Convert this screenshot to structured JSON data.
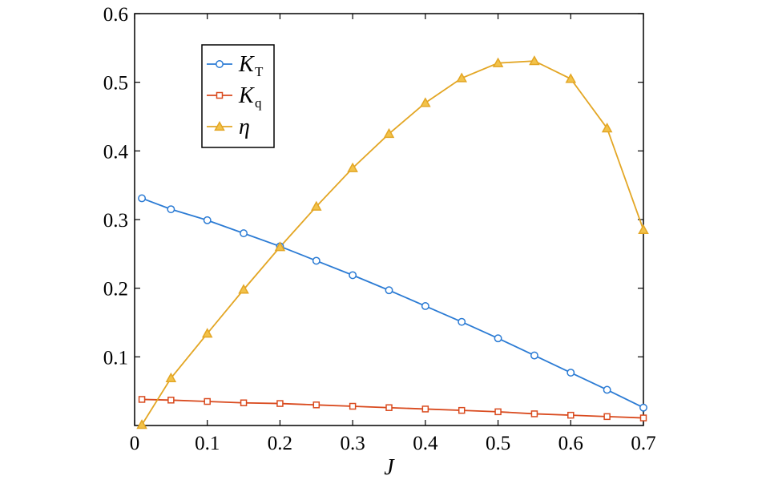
{
  "chart_data": {
    "type": "line",
    "xlabel": "J",
    "ylabel": "",
    "xlim": [
      0,
      0.7
    ],
    "ylim": [
      0,
      0.6
    ],
    "xticks": [
      0,
      0.1,
      0.2,
      0.3,
      0.4,
      0.5,
      0.6,
      0.7
    ],
    "xtick_labels": [
      "0",
      "0.1",
      "0.2",
      "0.3",
      "0.4",
      "0.5",
      "0.6",
      "0.7"
    ],
    "yticks": [
      0.1,
      0.2,
      0.3,
      0.4,
      0.5,
      0.6
    ],
    "ytick_labels": [
      "0.1",
      "0.2",
      "0.3",
      "0.4",
      "0.5",
      "0.6"
    ],
    "grid": false,
    "legend_position": "top-left",
    "series": [
      {
        "name": "K",
        "name_sub": "T",
        "color": "#2b7bd4",
        "marker": "circle",
        "x": [
          0.01,
          0.05,
          0.1,
          0.15,
          0.2,
          0.25,
          0.3,
          0.35,
          0.4,
          0.45,
          0.5,
          0.55,
          0.6,
          0.65,
          0.7
        ],
        "y": [
          0.331,
          0.315,
          0.299,
          0.28,
          0.261,
          0.24,
          0.219,
          0.197,
          0.174,
          0.151,
          0.127,
          0.102,
          0.077,
          0.052,
          0.026
        ]
      },
      {
        "name": "K",
        "name_sub": "q",
        "color": "#d94a1e",
        "marker": "square",
        "x": [
          0.01,
          0.05,
          0.1,
          0.15,
          0.2,
          0.25,
          0.3,
          0.35,
          0.4,
          0.45,
          0.5,
          0.55,
          0.6,
          0.65,
          0.7
        ],
        "y": [
          0.038,
          0.037,
          0.035,
          0.033,
          0.032,
          0.03,
          0.028,
          0.026,
          0.024,
          0.022,
          0.02,
          0.017,
          0.015,
          0.013,
          0.011
        ]
      },
      {
        "name": "η",
        "name_sub": "",
        "color": "#e3a624",
        "marker": "triangle",
        "x": [
          0.01,
          0.05,
          0.1,
          0.15,
          0.2,
          0.25,
          0.3,
          0.35,
          0.4,
          0.45,
          0.5,
          0.55,
          0.6,
          0.65,
          0.7
        ],
        "y": [
          0.001,
          0.069,
          0.134,
          0.198,
          0.26,
          0.319,
          0.375,
          0.425,
          0.47,
          0.506,
          0.528,
          0.531,
          0.505,
          0.433,
          0.285
        ]
      }
    ]
  }
}
